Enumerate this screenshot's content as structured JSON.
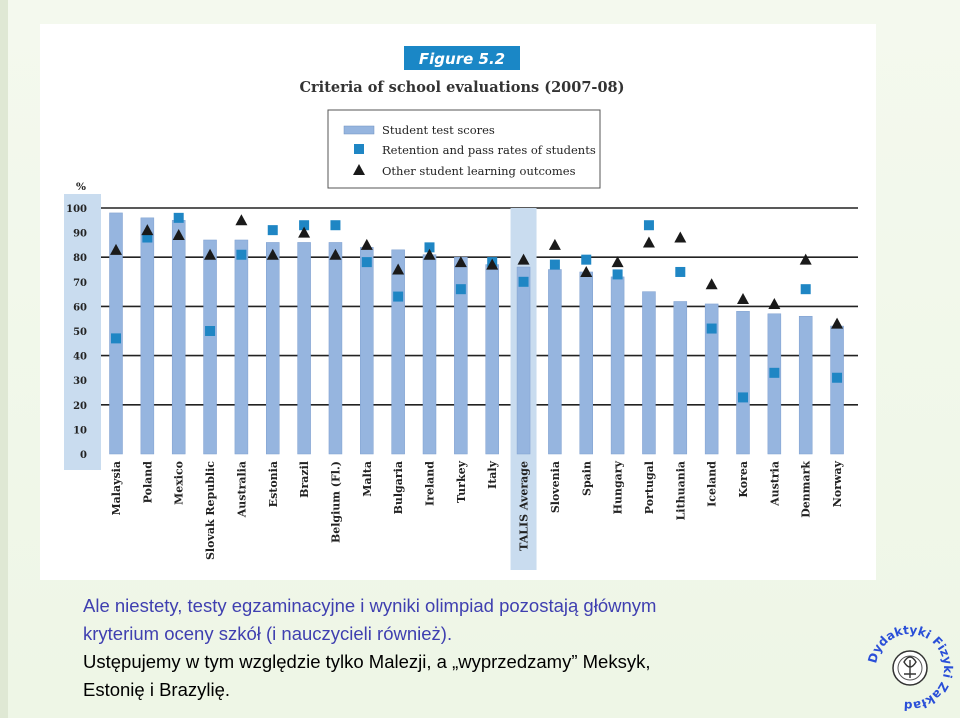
{
  "figure_label": "Figure 5.2",
  "chart_data": {
    "type": "bar",
    "title": "Criteria of school evaluations (2007-08)",
    "ylabel": "%",
    "ylim": [
      0,
      100
    ],
    "yticks": [
      0,
      10,
      20,
      30,
      40,
      50,
      60,
      70,
      80,
      90,
      100
    ],
    "grid": true,
    "legend_position": "top-center",
    "highlight_category": "TALIS Average",
    "categories": [
      "Malaysia",
      "Poland",
      "Mexico",
      "Slovak Republic",
      "Australia",
      "Estonia",
      "Brazil",
      "Belgium (Fl.)",
      "Malta",
      "Bulgaria",
      "Ireland",
      "Turkey",
      "Italy",
      "TALIS Average",
      "Slovenia",
      "Spain",
      "Hungary",
      "Portugal",
      "Lithuania",
      "Iceland",
      "Korea",
      "Austria",
      "Denmark",
      "Norway"
    ],
    "series": [
      {
        "name": "Student test scores",
        "marker": "bar",
        "color": "#96b5df",
        "values": [
          98,
          96,
          95,
          87,
          87,
          86,
          86,
          86,
          84,
          83,
          81,
          80,
          77,
          76,
          75,
          74,
          72,
          66,
          62,
          61,
          58,
          57,
          56,
          52
        ]
      },
      {
        "name": "Retention and pass rates of students",
        "marker": "square",
        "color": "#1f86c4",
        "values": [
          47,
          88,
          96,
          50,
          81,
          91,
          93,
          93,
          78,
          64,
          84,
          67,
          78,
          70,
          77,
          79,
          73,
          93,
          74,
          51,
          23,
          33,
          67,
          31
        ]
      },
      {
        "name": "Other student learning outcomes",
        "marker": "triangle",
        "color": "#1a1a1a",
        "values": [
          83,
          91,
          89,
          81,
          95,
          81,
          90,
          81,
          85,
          75,
          81,
          78,
          77,
          79,
          85,
          74,
          78,
          86,
          88,
          69,
          63,
          61,
          79,
          53
        ]
      }
    ]
  },
  "caption": {
    "line1": "Ale niestety, testy egzaminacyjne i wyniki olimpiad pozostają głównym",
    "line2": "kryterium oceny szkół (i nauczycieli również).",
    "line3": "Ustępujemy w tym względzie tylko Malezji, a „wyprzedzamy” Meksyk,",
    "line4": "Estonię i Brazylię."
  },
  "logo": {
    "text": "Dydaktyki Fizyki Zakład"
  }
}
